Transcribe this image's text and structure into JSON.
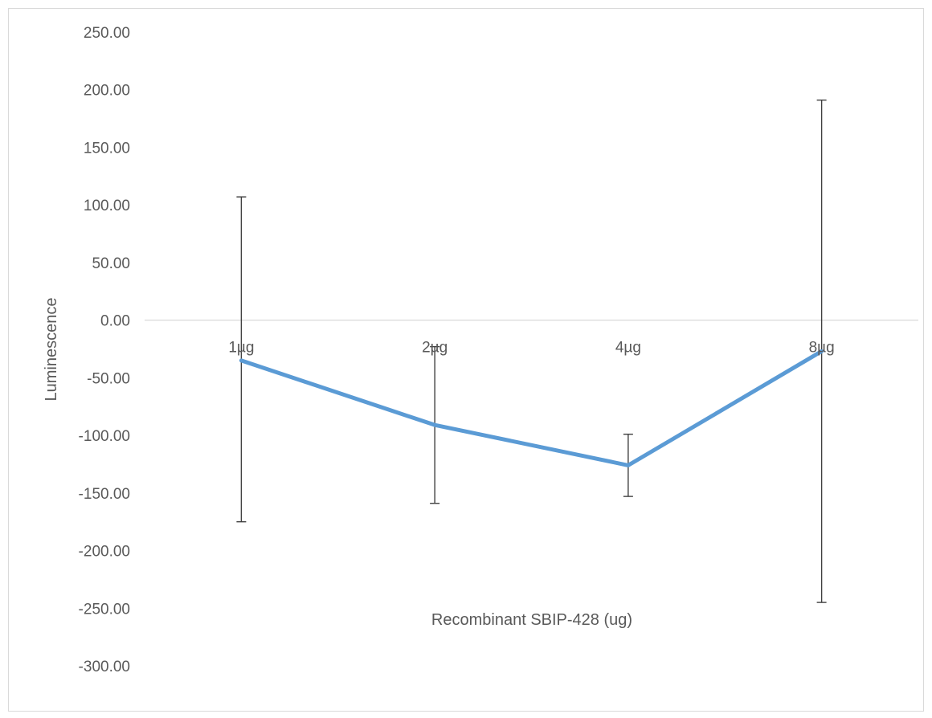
{
  "chart_data": {
    "type": "line",
    "title": "",
    "xlabel": "Recombinant SBIP-428 (ug)",
    "ylabel": "Luminescence",
    "categories": [
      "1µg",
      "2µg",
      "4µg",
      "8µg"
    ],
    "series": [
      {
        "values": [
          -35,
          -91,
          -126,
          -27
        ],
        "error_plus": [
          142,
          68,
          27,
          218
        ],
        "error_minus": [
          140,
          68,
          27,
          218
        ],
        "color": "#5B9BD5"
      }
    ],
    "ylim": [
      -300,
      250
    ],
    "yticks": [
      250,
      200,
      150,
      100,
      50,
      0,
      -50,
      -100,
      -150,
      -200,
      -250,
      -300
    ],
    "ytick_labels": [
      "250.00",
      "200.00",
      "150.00",
      "100.00",
      "50.00",
      "0.00",
      "-50.00",
      "-100.00",
      "-150.00",
      "-200.00",
      "-250.00",
      "-300.00"
    ],
    "grid": false,
    "legend": "none",
    "colors": {
      "line": "#5B9BD5",
      "error_bar": "#404040",
      "axis": "#d9d9d9",
      "text": "#595959"
    }
  }
}
